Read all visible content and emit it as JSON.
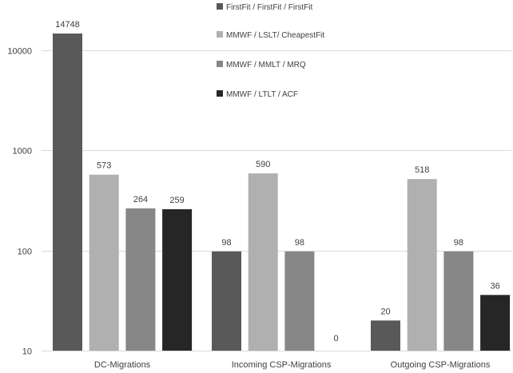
{
  "chart_data": {
    "type": "bar",
    "yscale": "log",
    "ylim": [
      10,
      20000
    ],
    "yticks": [
      10,
      100,
      1000,
      10000
    ],
    "grid": true,
    "legend_position": "top-right",
    "categories": [
      "DC-Migrations",
      "Incoming CSP-Migrations",
      "Outgoing CSP-Migrations"
    ],
    "series": [
      {
        "name": "FirstFit  / FirstFit  / FirstFit",
        "color": "#595959",
        "values": [
          14748,
          98,
          20
        ]
      },
      {
        "name": "MMWF / LSLT/ CheapestFit",
        "color": "#b0b0b0",
        "values": [
          573,
          590,
          518
        ]
      },
      {
        "name": "MMWF / MMLT / MRQ",
        "color": "#878787",
        "values": [
          264,
          98,
          98
        ]
      },
      {
        "name": "MMWF / LTLT / ACF",
        "color": "#262626",
        "values": [
          259,
          0,
          36
        ]
      }
    ]
  }
}
